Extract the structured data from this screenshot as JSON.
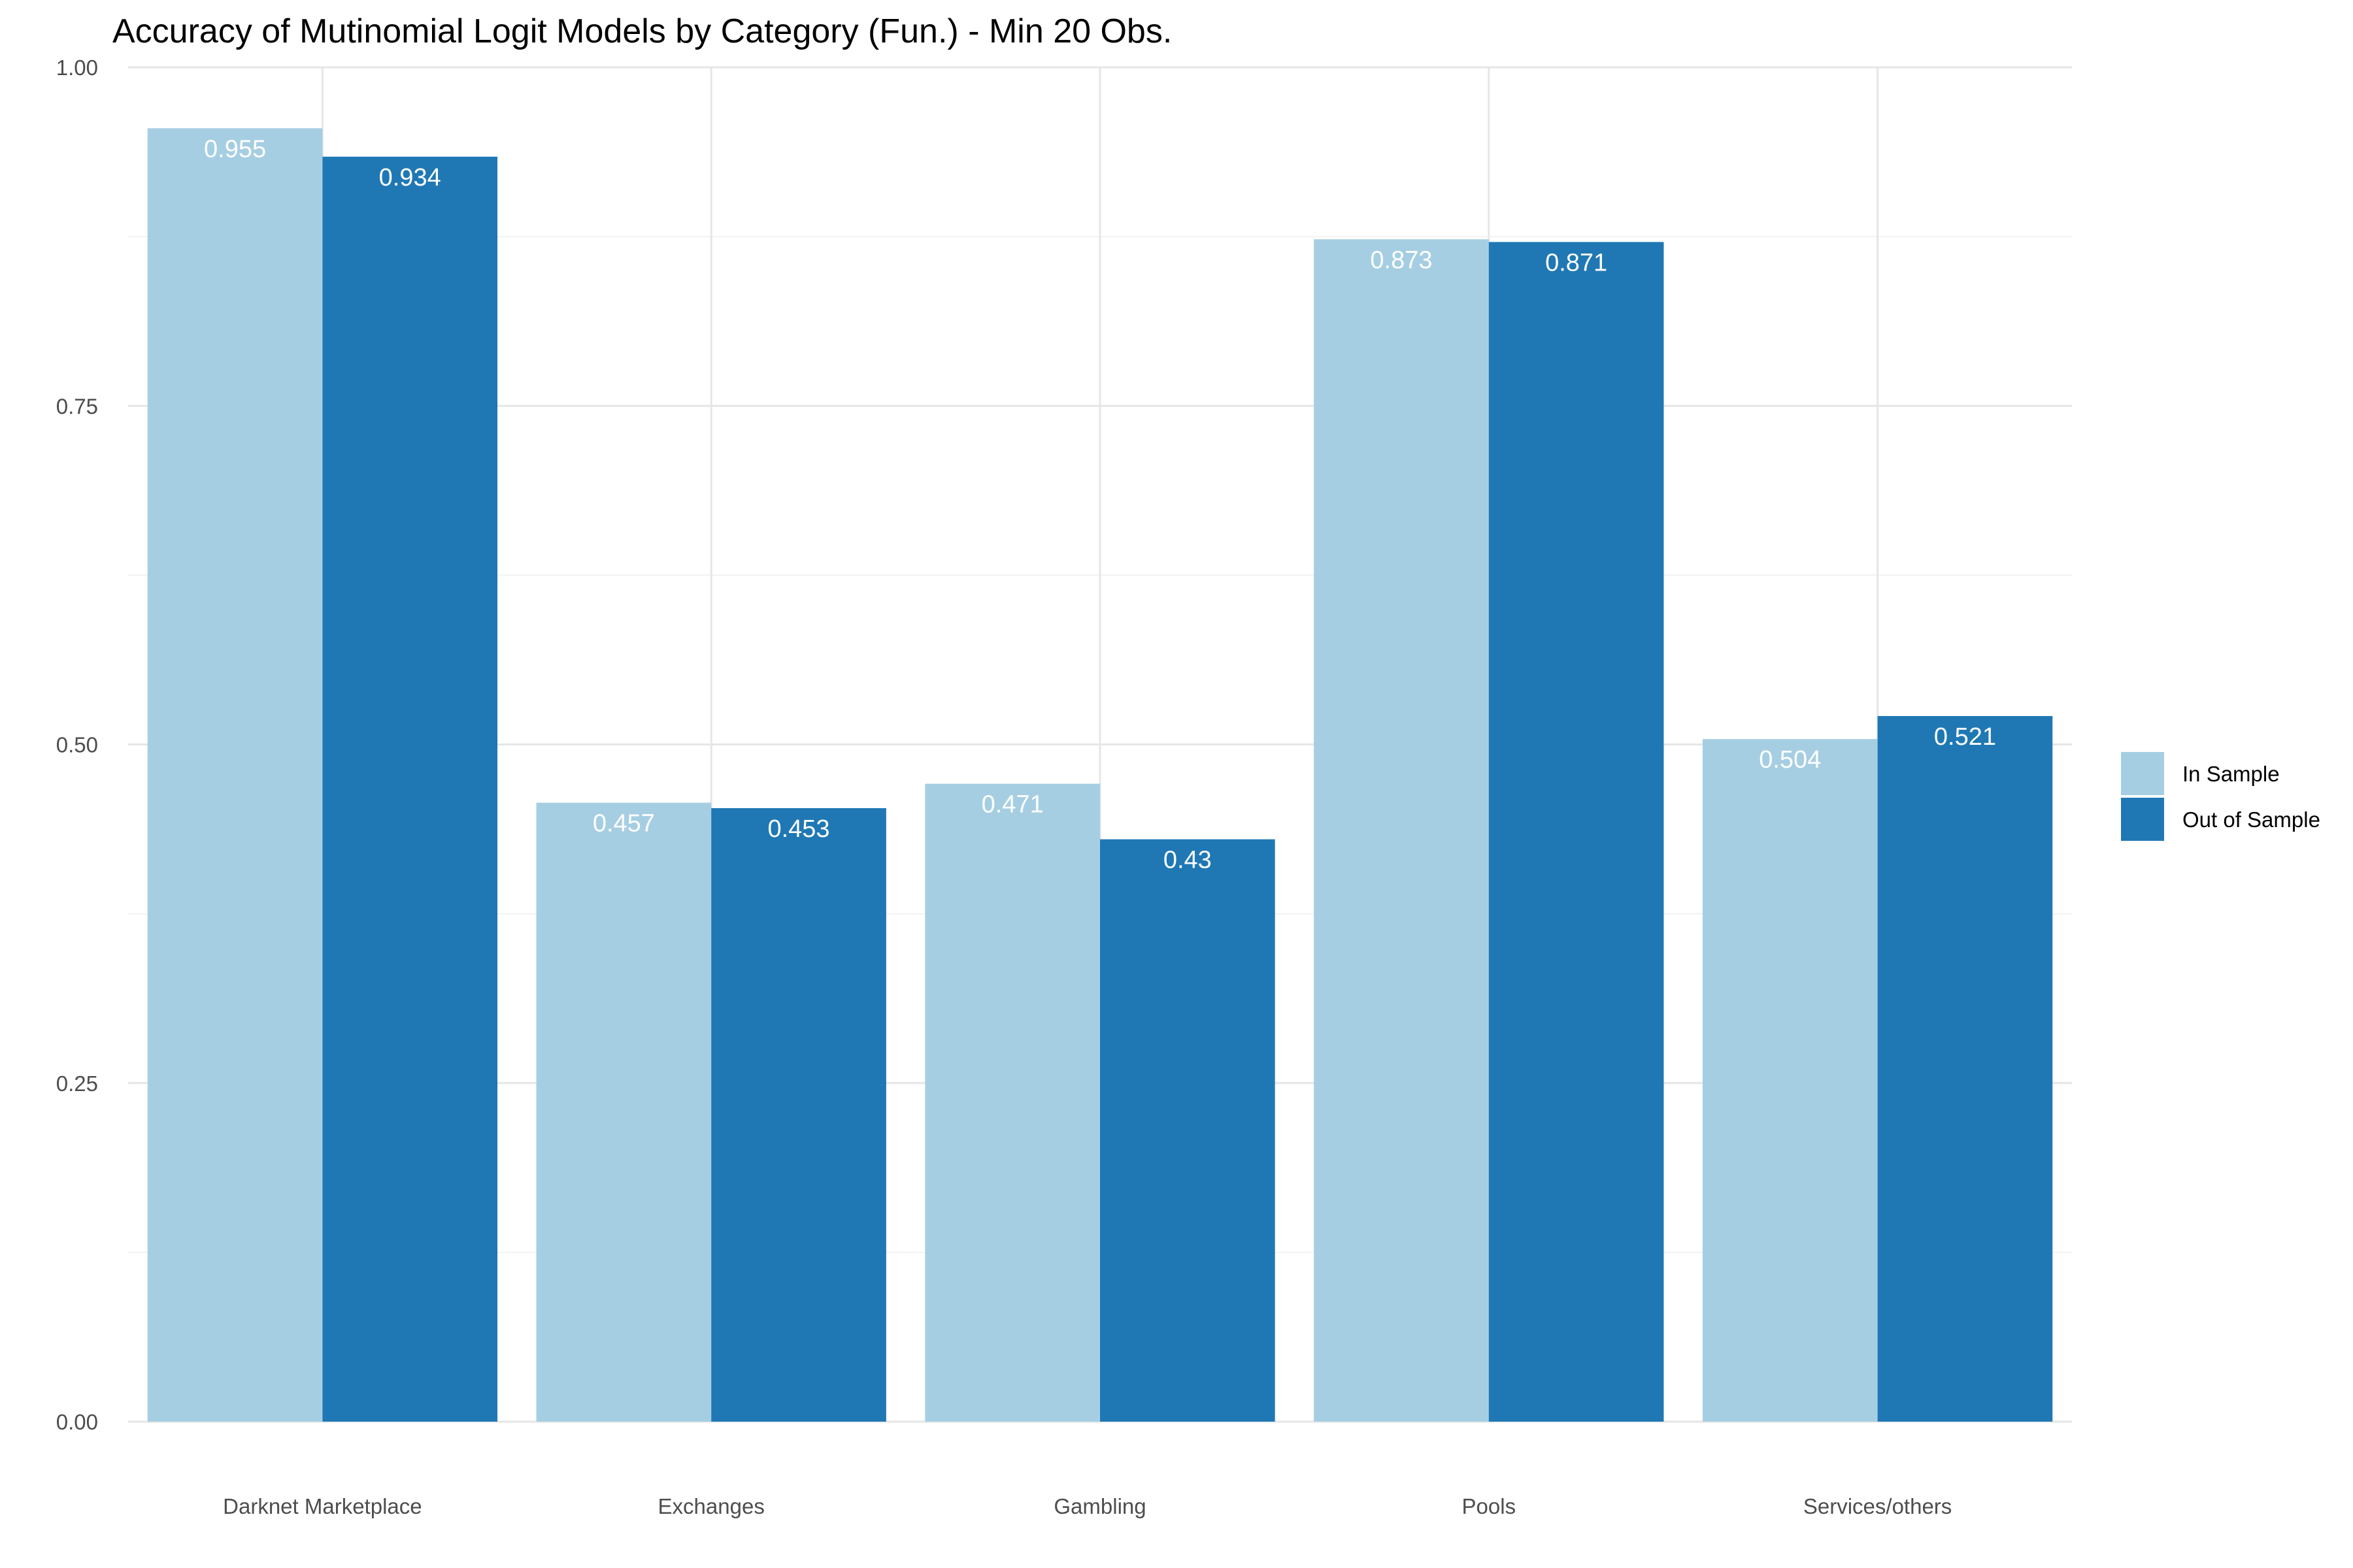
{
  "chart_data": {
    "type": "bar",
    "title": "Accuracy of Mutinomial Logit Models by Category (Fun.) - Min 20 Obs.",
    "xlabel": "",
    "ylabel": "",
    "categories": [
      "Darknet Marketplace",
      "Exchanges",
      "Gambling",
      "Pools",
      "Services/others"
    ],
    "series": [
      {
        "name": "In Sample",
        "color": "#a6cee3",
        "values": [
          0.955,
          0.457,
          0.471,
          0.873,
          0.504
        ],
        "labels": [
          "0.955",
          "0.457",
          "0.471",
          "0.873",
          "0.504"
        ]
      },
      {
        "name": "Out of Sample",
        "color": "#1f78b4",
        "values": [
          0.934,
          0.453,
          0.43,
          0.871,
          0.521
        ],
        "labels": [
          "0.934",
          "0.453",
          "0.43",
          "0.871",
          "0.521"
        ]
      }
    ],
    "ylim": [
      0,
      1
    ],
    "yticks": [
      0,
      0.25,
      0.5,
      0.75,
      1
    ],
    "ytick_labels": [
      "0.00",
      "0.25",
      "0.50",
      "0.75",
      "1.00"
    ],
    "grid": true,
    "legend_position": "right"
  }
}
